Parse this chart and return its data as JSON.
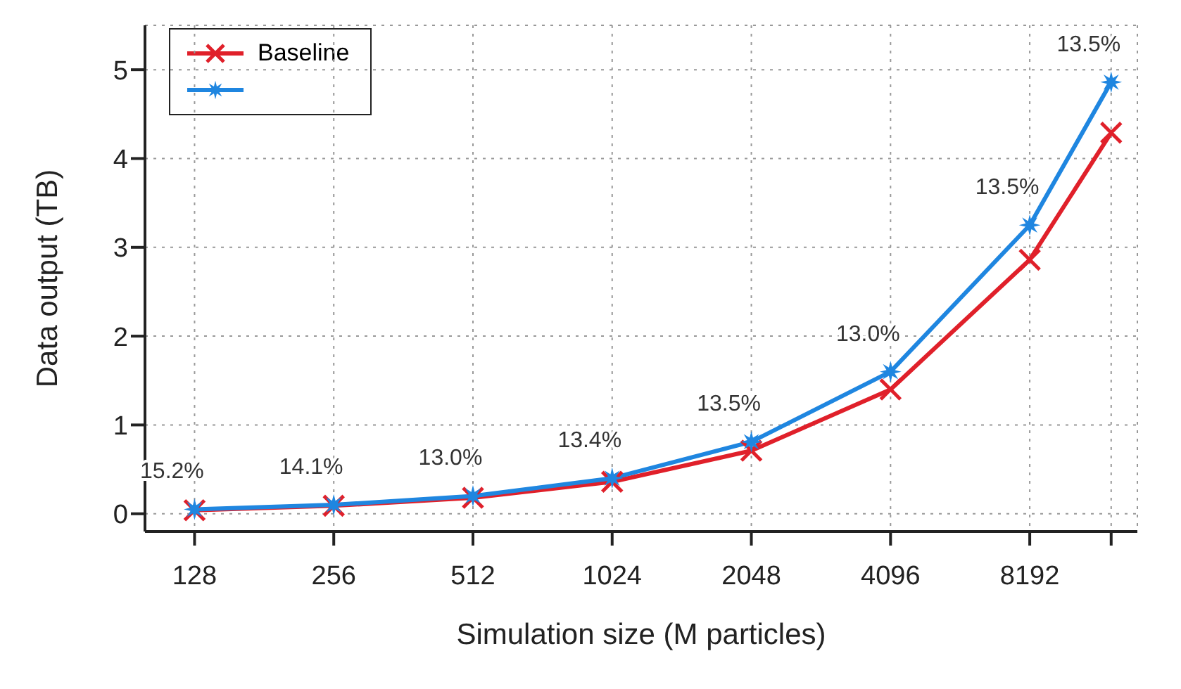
{
  "chart_data": {
    "type": "line",
    "xlabel": "Simulation size (M particles)",
    "ylabel": "Data output (TB)",
    "x": [
      128,
      256,
      512,
      1024,
      2048,
      4096,
      8192,
      12288
    ],
    "series": [
      {
        "name": "Baseline",
        "color": "#e0202a",
        "marker": "cross",
        "values": [
          0.04,
          0.09,
          0.18,
          0.36,
          0.71,
          1.4,
          2.86,
          4.29
        ]
      },
      {
        "color": "#1f86e0",
        "marker": "star",
        "values": [
          0.05,
          0.1,
          0.2,
          0.4,
          0.81,
          1.6,
          3.25,
          4.86
        ]
      }
    ],
    "log": "x",
    "xlim": [
      100,
      14000
    ],
    "xticks": [
      128,
      256,
      512,
      1024,
      2048,
      4096,
      8192,
      {
        "value": 12288,
        "label": null
      }
    ],
    "ylim": [
      -0.2,
      5.5
    ],
    "yticks": [
      0,
      1,
      2,
      3,
      4,
      5
    ],
    "grid": true,
    "legend": "top left",
    "annotations": [
      {
        "text": "15.2%",
        "x": 128,
        "y": 0.05
      },
      {
        "text": "14.1%",
        "x": 256,
        "y": 0.1
      },
      {
        "text": "13.0%",
        "x": 512,
        "y": 0.2
      },
      {
        "text": "13.4%",
        "x": 1024,
        "y": 0.4
      },
      {
        "text": "13.5%",
        "x": 2048,
        "y": 0.81
      },
      {
        "text": "13.0%",
        "x": 4096,
        "y": 1.6
      },
      {
        "text": "13.5%",
        "x": 8192,
        "y": 3.25
      },
      {
        "text": "13.5%",
        "x": 12288,
        "y": 4.86
      }
    ]
  }
}
